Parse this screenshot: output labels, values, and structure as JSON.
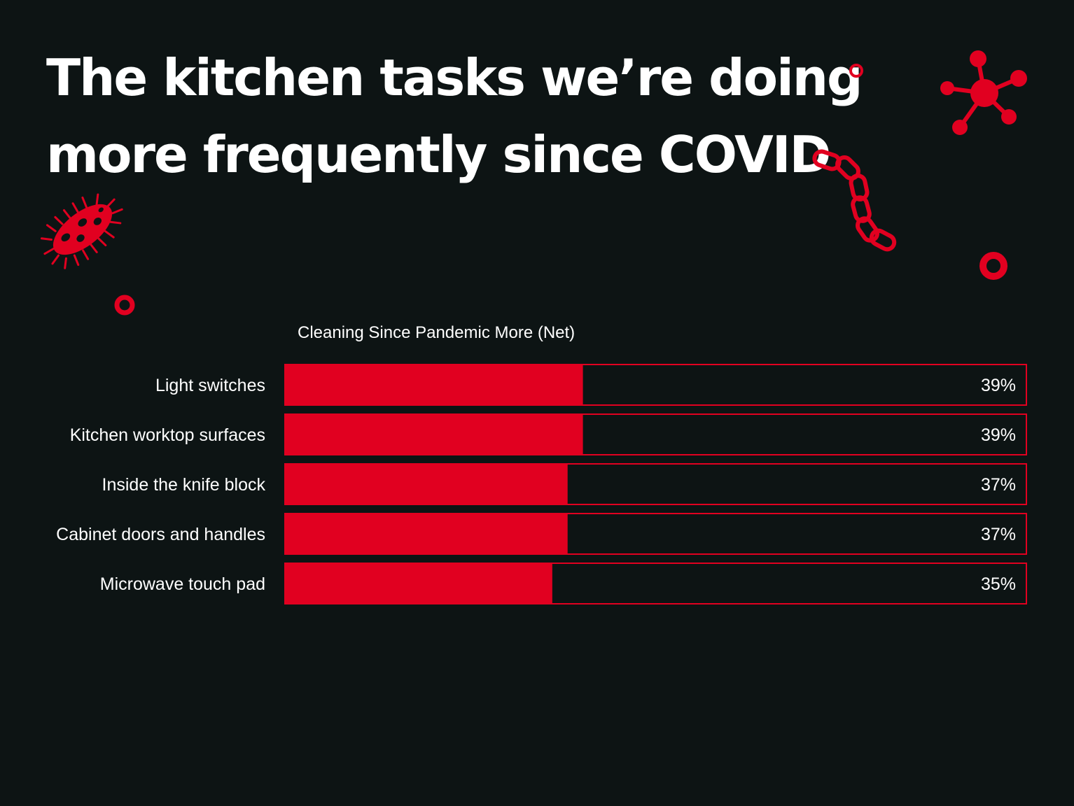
{
  "title_line1": "The kitchen tasks we’re doing",
  "title_line2": "more frequently since COVID",
  "colors": {
    "background": "#0d1414",
    "accent": "#e10020",
    "text": "#ffffff"
  },
  "decorations": [
    "bacteria-icon",
    "virus-icon",
    "chain-bacteria-icon",
    "ring-icon"
  ],
  "chart_data": {
    "type": "bar",
    "orientation": "horizontal",
    "title": "Cleaning Since Pandemic More (Net)",
    "categories": [
      "Light switches",
      "Kitchen worktop surfaces",
      "Inside the knife block",
      "Cabinet doors and handles",
      "Microwave touch pad"
    ],
    "values": [
      39,
      39,
      37,
      37,
      35
    ],
    "labels": [
      "39%",
      "39%",
      "37%",
      "37%",
      "35%"
    ],
    "unit": "%",
    "xlim": [
      0,
      97
    ],
    "grid": false,
    "legend": "none"
  }
}
